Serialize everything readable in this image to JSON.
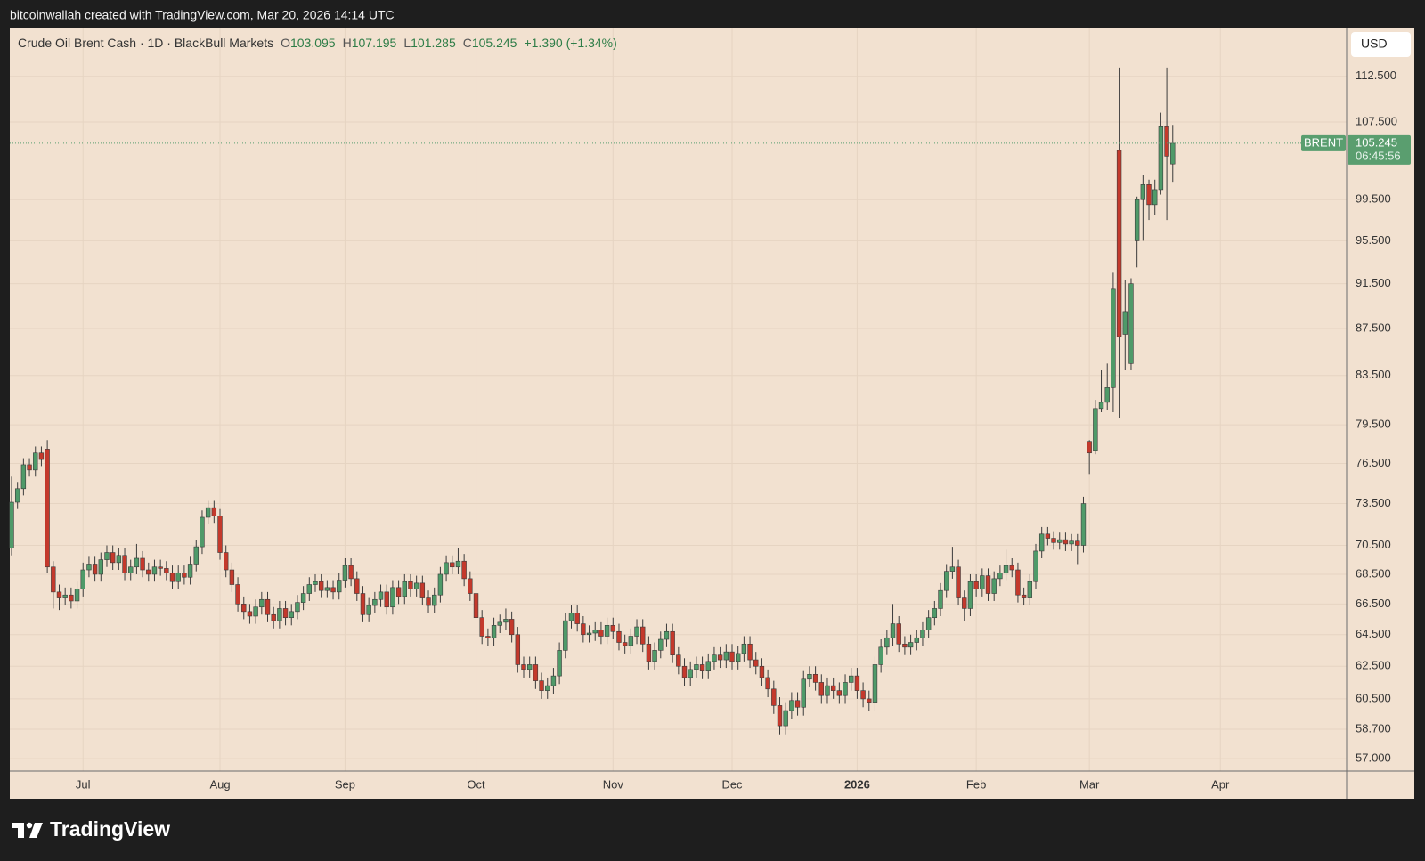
{
  "attribution": "bitcoinwallah created with TradingView.com, Mar 20, 2026 14:14 UTC",
  "brand": "TradingView",
  "currency": "USD",
  "chart_data": {
    "type": "candlestick",
    "title": "Crude Oil Brent Cash · 1D · BlackBull Markets",
    "ohlc_labels": [
      "O",
      "H",
      "L",
      "C"
    ],
    "change_label": "+1.390 (+1.34%)",
    "symbol": "BRENT",
    "countdown": "06:45:56",
    "log_scale": true,
    "grid": true,
    "up_color": "#4f9a69",
    "down_color": "#c4392c",
    "wick_color": "#3b3b3b",
    "last_color": "#5a9e6f",
    "xlim": [
      -0.3,
      224.2
    ],
    "xticks": [
      {
        "value": 12,
        "label": "Jul"
      },
      {
        "value": 35,
        "label": "Aug"
      },
      {
        "value": 56,
        "label": "Sep"
      },
      {
        "value": 78,
        "label": "Oct"
      },
      {
        "value": 101,
        "label": "Nov"
      },
      {
        "value": 121,
        "label": "Dec"
      },
      {
        "value": 142,
        "label": "2026"
      },
      {
        "value": 162,
        "label": "Feb"
      },
      {
        "value": 181,
        "label": "Mar"
      },
      {
        "value": 203,
        "label": "Apr"
      }
    ],
    "ylim": [
      56.3,
      118.0
    ],
    "yticks": [
      {
        "value": 112.5,
        "label": "112.500"
      },
      {
        "value": 107.5,
        "label": "107.500"
      },
      {
        "value": 99.5,
        "label": "99.500"
      },
      {
        "value": 95.5,
        "label": "95.500"
      },
      {
        "value": 91.5,
        "label": "91.500"
      },
      {
        "value": 87.5,
        "label": "87.500"
      },
      {
        "value": 83.5,
        "label": "83.500"
      },
      {
        "value": 79.5,
        "label": "79.500"
      },
      {
        "value": 76.5,
        "label": "76.500"
      },
      {
        "value": 73.5,
        "label": "73.500"
      },
      {
        "value": 70.5,
        "label": "70.500"
      },
      {
        "value": 68.5,
        "label": "68.500"
      },
      {
        "value": 66.5,
        "label": "66.500"
      },
      {
        "value": 64.5,
        "label": "64.500"
      },
      {
        "value": 62.5,
        "label": "62.500"
      },
      {
        "value": 60.5,
        "label": "60.500"
      },
      {
        "value": 58.7,
        "label": "58.700"
      },
      {
        "value": 57.0,
        "label": "57.000"
      }
    ],
    "open": [
      70.3,
      73.6,
      74.6,
      76.4,
      76.0,
      77.3,
      77.6,
      69.0,
      67.3,
      66.9,
      67.1,
      66.7,
      67.5,
      68.8,
      69.2,
      68.5,
      69.5,
      70.0,
      69.3,
      69.8,
      68.6,
      69.0,
      69.6,
      68.8,
      68.5,
      69.0,
      68.9,
      68.6,
      68.0,
      68.6,
      68.3,
      69.2,
      70.4,
      72.5,
      73.2,
      72.6,
      70.0,
      68.8,
      67.8,
      66.5,
      66.0,
      65.7,
      66.3,
      66.8,
      65.8,
      65.4,
      66.2,
      65.6,
      66.0,
      66.6,
      67.2,
      67.8,
      68.0,
      67.4,
      67.6,
      67.3,
      68.1,
      69.1,
      68.2,
      67.2,
      65.8,
      66.4,
      66.8,
      67.3,
      66.3,
      67.6,
      67.0,
      68.0,
      67.5,
      67.9,
      66.9,
      66.4,
      67.1,
      68.5,
      69.3,
      69.0,
      69.4,
      68.2,
      67.2,
      65.6,
      64.4,
      64.3,
      65.1,
      65.3,
      65.5,
      64.5,
      62.6,
      62.3,
      62.6,
      61.6,
      61.0,
      61.3,
      61.9,
      63.5,
      65.4,
      65.9,
      65.2,
      64.5,
      64.6,
      64.8,
      64.4,
      65.1,
      64.7,
      64.0,
      63.8,
      64.4,
      65.0,
      63.9,
      62.8,
      63.5,
      64.2,
      64.7,
      63.2,
      62.5,
      61.8,
      62.3,
      62.6,
      62.2,
      62.8,
      63.2,
      62.9,
      63.4,
      62.8,
      63.3,
      63.9,
      62.9,
      62.5,
      61.8,
      61.1,
      60.1,
      58.9,
      59.8,
      60.4,
      60.0,
      61.7,
      62.0,
      61.5,
      60.7,
      61.3,
      61.0,
      60.7,
      61.5,
      61.9,
      61.0,
      60.5,
      60.3,
      62.6,
      63.7,
      64.3,
      65.2,
      63.9,
      63.7,
      64.0,
      64.3,
      64.8,
      65.6,
      66.2,
      67.4,
      68.7,
      69.0,
      66.9,
      66.2,
      68.0,
      67.5,
      68.4,
      67.2,
      68.2,
      68.6,
      69.1,
      68.8,
      67.1,
      66.9,
      68.0,
      70.1,
      71.3,
      71.0,
      70.7,
      70.9,
      70.6,
      70.8,
      70.5,
      78.2,
      77.5,
      80.8,
      81.3,
      82.5,
      104.5,
      87.0,
      84.5,
      95.5,
      99.5,
      101.0,
      99.0,
      100.5,
      107.0,
      103.095
    ],
    "high": [
      75.5,
      75.1,
      76.9,
      76.9,
      77.8,
      77.8,
      78.3,
      69.4,
      67.8,
      67.6,
      67.6,
      68.0,
      69.3,
      69.7,
      69.7,
      70.0,
      70.5,
      70.5,
      70.3,
      70.3,
      69.5,
      70.6,
      70.1,
      69.3,
      69.5,
      69.5,
      69.4,
      69.1,
      69.1,
      69.1,
      69.7,
      70.9,
      73.0,
      73.7,
      73.7,
      73.1,
      70.5,
      69.3,
      68.3,
      67.0,
      66.5,
      66.8,
      67.3,
      67.3,
      66.3,
      66.7,
      66.7,
      66.5,
      67.1,
      67.7,
      68.3,
      68.5,
      68.5,
      68.1,
      68.1,
      68.6,
      69.6,
      69.6,
      68.7,
      67.7,
      66.9,
      67.3,
      67.8,
      67.8,
      68.1,
      68.1,
      68.5,
      68.5,
      68.4,
      68.4,
      67.4,
      67.6,
      69.0,
      69.8,
      69.8,
      70.3,
      69.9,
      68.7,
      67.7,
      66.1,
      64.9,
      65.6,
      65.8,
      66.2,
      66.0,
      65.0,
      63.1,
      63.1,
      63.1,
      62.1,
      61.8,
      62.4,
      64.0,
      65.9,
      66.4,
      66.4,
      65.7,
      65.1,
      65.3,
      65.3,
      65.6,
      65.6,
      65.2,
      64.5,
      64.9,
      65.5,
      65.5,
      64.4,
      64.0,
      64.7,
      65.2,
      65.2,
      63.7,
      63.0,
      62.8,
      63.1,
      63.1,
      63.3,
      63.7,
      63.7,
      63.9,
      63.9,
      63.8,
      64.4,
      64.4,
      63.4,
      63.0,
      62.3,
      61.6,
      60.6,
      60.3,
      60.9,
      60.9,
      62.2,
      62.5,
      62.5,
      62.0,
      61.8,
      61.8,
      61.5,
      62.0,
      62.4,
      62.4,
      61.5,
      61.0,
      63.1,
      64.2,
      64.8,
      66.5,
      65.7,
      64.4,
      64.5,
      64.8,
      65.3,
      66.1,
      66.7,
      67.9,
      69.2,
      70.4,
      69.5,
      67.4,
      68.5,
      68.5,
      68.9,
      68.9,
      68.7,
      69.1,
      70.2,
      69.6,
      69.3,
      67.6,
      68.5,
      70.6,
      71.8,
      71.8,
      71.5,
      71.4,
      71.4,
      71.3,
      71.3,
      74.0,
      78.3,
      81.5,
      84.0,
      84.5,
      92.5,
      113.5,
      91.8,
      92.0,
      99.8,
      102.0,
      101.5,
      101.5,
      108.5,
      113.5,
      107.195
    ],
    "low": [
      69.8,
      73.1,
      74.1,
      75.5,
      75.5,
      76.3,
      68.6,
      66.2,
      66.1,
      66.4,
      66.2,
      66.2,
      67.0,
      68.3,
      68.0,
      68.0,
      69.0,
      68.8,
      68.8,
      68.1,
      68.1,
      68.5,
      68.3,
      68.0,
      68.0,
      68.4,
      68.1,
      67.5,
      67.5,
      67.8,
      67.8,
      68.7,
      69.9,
      72.0,
      72.1,
      69.5,
      68.3,
      67.3,
      66.0,
      65.5,
      65.2,
      65.2,
      65.8,
      65.3,
      64.9,
      64.9,
      65.1,
      65.1,
      65.5,
      66.1,
      66.7,
      67.3,
      66.9,
      66.9,
      66.8,
      66.8,
      67.6,
      67.7,
      66.7,
      65.3,
      65.3,
      65.9,
      66.3,
      65.8,
      65.8,
      66.5,
      66.5,
      67.0,
      67.0,
      66.4,
      65.9,
      65.9,
      66.6,
      68.0,
      68.5,
      68.5,
      67.7,
      66.7,
      65.1,
      63.9,
      63.8,
      63.8,
      64.6,
      64.8,
      64.0,
      62.1,
      61.8,
      61.8,
      61.1,
      60.5,
      60.5,
      60.8,
      61.4,
      63.0,
      64.9,
      64.7,
      64.0,
      64.0,
      64.1,
      63.9,
      63.9,
      64.2,
      63.5,
      63.3,
      63.3,
      63.9,
      63.4,
      62.3,
      62.3,
      63.0,
      63.7,
      62.7,
      62.0,
      61.3,
      61.3,
      61.8,
      61.7,
      61.7,
      62.3,
      62.4,
      62.4,
      62.3,
      62.3,
      62.8,
      62.4,
      62.0,
      61.3,
      60.6,
      59.6,
      58.4,
      58.4,
      59.3,
      59.5,
      59.5,
      61.2,
      61.0,
      60.2,
      60.2,
      60.5,
      60.2,
      60.2,
      61.0,
      60.5,
      60.0,
      59.8,
      59.8,
      62.1,
      63.2,
      63.8,
      63.4,
      63.2,
      63.2,
      63.5,
      63.8,
      64.3,
      65.1,
      65.7,
      66.9,
      68.2,
      66.4,
      65.4,
      65.7,
      67.0,
      67.0,
      66.7,
      66.7,
      67.7,
      68.1,
      68.3,
      66.6,
      66.4,
      66.4,
      67.5,
      69.6,
      70.5,
      70.2,
      70.2,
      70.1,
      70.1,
      69.2,
      70.0,
      75.7,
      77.2,
      80.5,
      80.7,
      80.5,
      80.0,
      84.0,
      84.0,
      93.0,
      95.5,
      97.5,
      98.0,
      100.0,
      97.5,
      101.285
    ],
    "close": [
      73.6,
      74.6,
      76.4,
      76.0,
      77.3,
      76.8,
      69.0,
      67.3,
      66.9,
      67.1,
      66.7,
      67.5,
      68.8,
      69.2,
      68.5,
      69.5,
      70.0,
      69.3,
      69.8,
      68.6,
      69.0,
      69.6,
      68.8,
      68.5,
      69.0,
      68.9,
      68.6,
      68.0,
      68.6,
      68.3,
      69.2,
      70.4,
      72.5,
      73.2,
      72.6,
      70.0,
      68.8,
      67.8,
      66.5,
      66.0,
      65.7,
      66.3,
      66.8,
      65.8,
      65.4,
      66.2,
      65.6,
      66.0,
      66.6,
      67.2,
      67.8,
      68.0,
      67.4,
      67.6,
      67.3,
      68.1,
      69.1,
      68.2,
      67.2,
      65.8,
      66.4,
      66.8,
      67.3,
      66.3,
      67.6,
      67.0,
      68.0,
      67.5,
      67.9,
      66.9,
      66.4,
      67.1,
      68.5,
      69.3,
      69.0,
      69.4,
      68.2,
      67.2,
      65.6,
      64.4,
      64.3,
      65.1,
      65.3,
      65.5,
      64.5,
      62.6,
      62.3,
      62.6,
      61.6,
      61.0,
      61.3,
      61.9,
      63.5,
      65.4,
      65.9,
      65.2,
      64.5,
      64.6,
      64.8,
      64.4,
      65.1,
      64.7,
      64.0,
      63.8,
      64.4,
      65.0,
      63.9,
      62.8,
      63.5,
      64.2,
      64.7,
      63.2,
      62.5,
      61.8,
      62.3,
      62.6,
      62.2,
      62.8,
      63.2,
      62.9,
      63.4,
      62.8,
      63.3,
      63.9,
      62.9,
      62.5,
      61.8,
      61.1,
      60.1,
      58.9,
      59.8,
      60.4,
      60.0,
      61.7,
      62.0,
      61.5,
      60.7,
      61.3,
      61.0,
      60.7,
      61.5,
      61.9,
      61.0,
      60.5,
      60.3,
      62.6,
      63.7,
      64.3,
      65.2,
      63.9,
      63.7,
      64.0,
      64.3,
      64.8,
      65.6,
      66.2,
      67.4,
      68.7,
      69.0,
      66.9,
      66.2,
      68.0,
      67.5,
      68.4,
      67.2,
      68.2,
      68.6,
      69.1,
      68.8,
      67.1,
      66.9,
      68.0,
      70.1,
      71.3,
      71.0,
      70.7,
      70.9,
      70.6,
      70.8,
      70.5,
      73.5,
      77.3,
      80.8,
      81.3,
      82.5,
      91.0,
      86.8,
      89.0,
      91.5,
      99.5,
      101.0,
      99.0,
      100.5,
      107.0,
      103.9,
      105.245
    ]
  }
}
